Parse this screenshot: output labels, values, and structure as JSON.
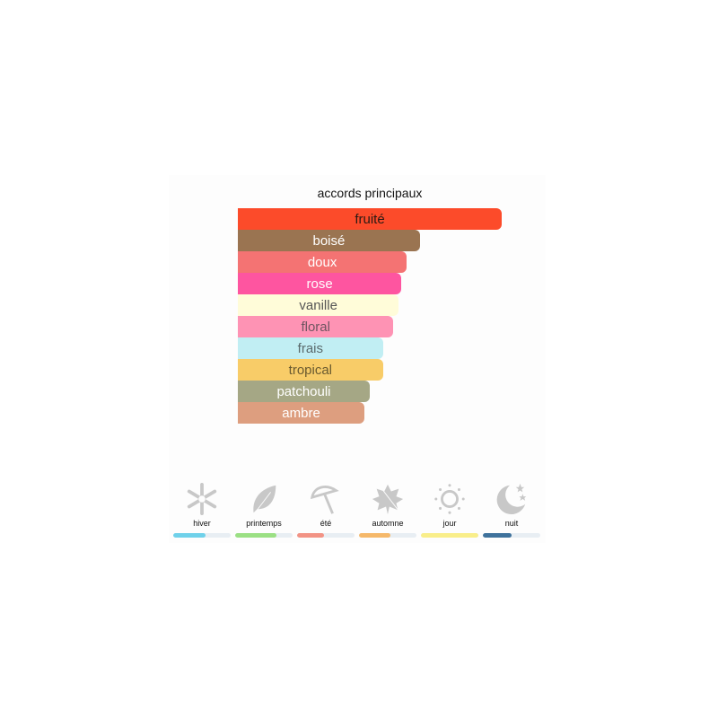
{
  "chart_data": {
    "type": "bar",
    "orientation": "horizontal",
    "title": "accords principaux",
    "categories": [
      "fruité",
      "boisé",
      "doux",
      "rose",
      "vanille",
      "floral",
      "frais",
      "tropical",
      "patchouli",
      "ambre"
    ],
    "values": [
      100,
      69,
      64,
      62,
      61,
      59,
      55,
      55,
      50,
      48
    ],
    "colors": [
      "#fc4b2a",
      "#9a7451",
      "#f47373",
      "#fe55a0",
      "#fffcd9",
      "#fe93b4",
      "#c1eef3",
      "#f8cc68",
      "#a5a785",
      "#dd9e7f"
    ],
    "text_colors": [
      "#2a1a14",
      "#ffffff",
      "#ffffff",
      "#ffffff",
      "#555555",
      "#6e5560",
      "#5a6a6c",
      "#6a5a30",
      "#ffffff",
      "#ffffff"
    ],
    "xlim": [
      0,
      100
    ]
  },
  "seasons": [
    {
      "label": "hiver",
      "icon": "snowflake-icon",
      "value": 56,
      "color": "#6fd1ea"
    },
    {
      "label": "printemps",
      "icon": "leaf-icon",
      "value": 72,
      "color": "#9be084"
    },
    {
      "label": "été",
      "icon": "umbrella-icon",
      "value": 47,
      "color": "#f29385"
    },
    {
      "label": "automne",
      "icon": "maple-leaf-icon",
      "value": 54,
      "color": "#f5b86a"
    },
    {
      "label": "jour",
      "icon": "sun-icon",
      "value": 100,
      "color": "#f9ee8a"
    },
    {
      "label": "nuit",
      "icon": "moon-icon",
      "value": 50,
      "color": "#3f729c"
    }
  ]
}
